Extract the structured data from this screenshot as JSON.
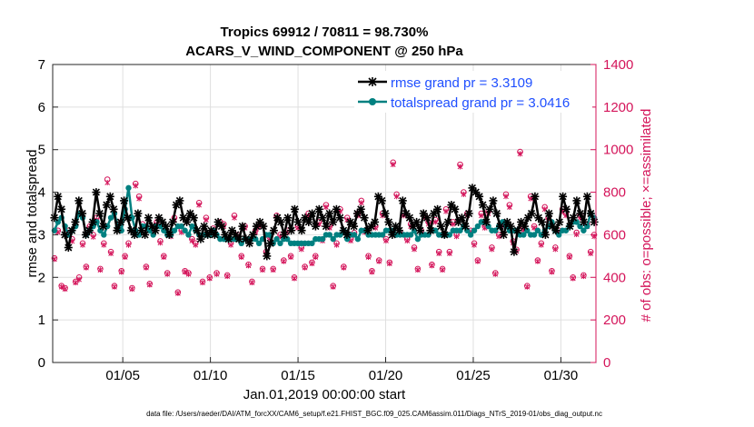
{
  "chart_data": {
    "type": "line",
    "title_line1": "Tropics 69912 / 70811 = 98.730%",
    "title_line2": "ACARS_V_WIND_COMPONENT @ 250 hPa",
    "xlabel": "Jan.01,2019 00:00:00 start",
    "ylabel_left": "rmse and totalspread",
    "ylabel_right": "# of obs: o=possible; ×=assimilated",
    "footnote": "data file: /Users/raeder/DAI/ATM_forcXX/CAM6_setup/f.e21.FHIST_BGC.f09_025.CAM6assim.011/Diags_NTrS_2019-01/obs_diag_output.nc",
    "xlim": [
      1,
      32
    ],
    "ylim_left": [
      0,
      7
    ],
    "ylim_right": [
      0,
      1400
    ],
    "x_ticks": [
      5,
      10,
      15,
      20,
      25,
      30
    ],
    "x_tick_labels": [
      "01/05",
      "01/10",
      "01/15",
      "01/20",
      "01/25",
      "01/30"
    ],
    "y_ticks_left": [
      "0",
      "1",
      "2",
      "3",
      "4",
      "5",
      "6",
      "7"
    ],
    "y_ticks_right": [
      "0",
      "200",
      "400",
      "600",
      "800",
      "1000",
      "1200",
      "1400"
    ],
    "grid": true,
    "legend_position": "top-right",
    "series": [
      {
        "name": "rmse grand pr = 3.3109",
        "color": "#000000",
        "marker": "asterisk",
        "axis": "left",
        "values": [
          3.4,
          3.9,
          3.6,
          3.0,
          2.7,
          3.1,
          3.3,
          3.8,
          3.5,
          3.0,
          3.1,
          3.3,
          4.0,
          3.5,
          3.2,
          3.7,
          3.9,
          3.6,
          3.1,
          3.3,
          3.8,
          3.4,
          3.1,
          3.0,
          3.5,
          3.1,
          3.0,
          3.4,
          3.2,
          3.1,
          3.4,
          3.3,
          3.2,
          3.0,
          3.3,
          3.7,
          3.8,
          3.4,
          3.3,
          3.5,
          3.4,
          3.1,
          2.9,
          3.2,
          3.0,
          3.1,
          3.0,
          3.3,
          3.2,
          3.0,
          2.9,
          3.1,
          3.0,
          2.9,
          3.2,
          2.9,
          2.8,
          3.0,
          3.2,
          3.3,
          3.2,
          2.5,
          2.8,
          3.1,
          3.4,
          3.3,
          3.0,
          3.4,
          3.1,
          3.6,
          3.3,
          3.1,
          3.4,
          3.3,
          3.5,
          3.2,
          3.6,
          3.4,
          3.2,
          3.5,
          3.3,
          3.6,
          3.4,
          3.1,
          3.0,
          3.3,
          3.2,
          3.5,
          3.6,
          3.4,
          3.1,
          3.2,
          3.3,
          3.9,
          3.8,
          3.5,
          3.3,
          3.0,
          3.2,
          3.1,
          3.8,
          3.5,
          3.4,
          3.2,
          3.3,
          3.1,
          3.5,
          3.4,
          3.1,
          3.5,
          3.6,
          3.2,
          3.0,
          3.3,
          3.7,
          3.6,
          3.3,
          3.4,
          3.2,
          3.5,
          4.1,
          4.0,
          3.9,
          3.7,
          3.3,
          3.6,
          3.8,
          3.5,
          3.2,
          3.0,
          3.3,
          3.2,
          2.6,
          3.1,
          3.3,
          3.2,
          3.4,
          3.5,
          3.9,
          3.4,
          3.3,
          3.0,
          3.5,
          3.2,
          3.1,
          3.3,
          3.9,
          3.6,
          3.2,
          3.4,
          3.8,
          3.5,
          3.3,
          3.9,
          3.5,
          3.3
        ]
      },
      {
        "name": "totalspread grand pr = 3.0416",
        "color": "#008080",
        "marker": "circle",
        "axis": "left",
        "values": [
          3.1,
          3.3,
          3.4,
          3.2,
          3.0,
          3.1,
          3.2,
          3.5,
          3.4,
          3.0,
          3.1,
          3.2,
          3.3,
          3.1,
          3.0,
          3.2,
          3.4,
          3.5,
          3.2,
          3.1,
          3.6,
          4.1,
          3.4,
          3.1,
          3.0,
          3.2,
          3.2,
          3.1,
          3.0,
          3.2,
          3.2,
          3.1,
          3.0,
          3.0,
          3.1,
          3.2,
          3.2,
          3.1,
          3.0,
          3.2,
          3.1,
          3.0,
          3.0,
          3.0,
          3.0,
          3.1,
          3.0,
          2.9,
          2.9,
          2.9,
          2.9,
          2.9,
          2.9,
          2.8,
          2.9,
          2.9,
          2.9,
          2.9,
          2.8,
          2.9,
          3.0,
          3.0,
          2.8,
          2.9,
          2.8,
          2.9,
          2.9,
          2.8,
          2.8,
          2.8,
          2.8,
          2.8,
          2.8,
          2.8,
          2.9,
          2.9,
          2.9,
          3.0,
          3.0,
          2.9,
          3.0,
          3.0,
          3.1,
          2.9,
          3.0,
          3.0,
          2.9,
          3.1,
          3.1,
          3.0,
          3.0,
          3.0,
          3.0,
          3.0,
          3.1,
          3.1,
          3.1,
          3.0,
          3.0,
          3.0,
          3.0,
          3.0,
          3.1,
          2.9,
          3.0,
          3.0,
          3.0,
          3.1,
          3.1,
          3.0,
          3.0,
          3.0,
          3.0,
          3.1,
          3.1,
          3.1,
          3.2,
          3.1,
          3.0,
          3.1,
          3.2,
          3.3,
          3.3,
          3.2,
          3.1,
          3.1,
          3.2,
          3.3,
          3.2,
          3.1,
          3.1,
          3.1,
          3.0,
          3.0,
          3.1,
          3.0,
          3.0,
          3.1,
          3.0,
          3.1,
          3.2,
          3.3,
          3.1,
          3.0,
          3.1,
          3.1,
          3.2,
          3.3,
          3.3,
          3.2,
          3.1,
          3.2,
          3.5,
          3.4
        ]
      },
      {
        "name": "# of obs possible",
        "color": "#d4145a",
        "marker": "open-circle",
        "axis": "right",
        "values": [
          490,
          620,
          360,
          350,
          620,
          580,
          380,
          400,
          560,
          450,
          640,
          600,
          680,
          440,
          560,
          860,
          520,
          360,
          660,
          430,
          500,
          560,
          350,
          840,
          780,
          650,
          450,
          370,
          620,
          660,
          570,
          500,
          420,
          600,
          680,
          330,
          620,
          430,
          420,
          580,
          560,
          750,
          380,
          680,
          400,
          630,
          420,
          660,
          650,
          410,
          560,
          690,
          600,
          500,
          640,
          460,
          380,
          620,
          650,
          440,
          520,
          590,
          440,
          690,
          600,
          480,
          620,
          500,
          400,
          640,
          540,
          450,
          700,
          470,
          500,
          660,
          580,
          740,
          640,
          360,
          560,
          720,
          450,
          680,
          580,
          610,
          700,
          760,
          620,
          500,
          430,
          640,
          480,
          700,
          580,
          470,
          940,
          790,
          610,
          700,
          580,
          650,
          540,
          440,
          620,
          690,
          660,
          460,
          670,
          520,
          440,
          720,
          520,
          660,
          600,
          930,
          800,
          700,
          620,
          560,
          480,
          700,
          640,
          710,
          540,
          420,
          600,
          650,
          790,
          740,
          570,
          530,
          990,
          630,
          360,
          780,
          640,
          480,
          560,
          730,
          680,
          430,
          540,
          620,
          720,
          700,
          500,
          400,
          610,
          690,
          410,
          650,
          520,
          600
        ]
      },
      {
        "name": "# of obs assimilated",
        "color": "#d4145a",
        "marker": "x",
        "axis": "right",
        "values": [
          485,
          612,
          355,
          345,
          610,
          570,
          375,
          390,
          552,
          445,
          632,
          590,
          670,
          435,
          552,
          845,
          512,
          355,
          650,
          425,
          495,
          552,
          345,
          830,
          770,
          640,
          445,
          365,
          612,
          650,
          562,
          495,
          415,
          592,
          670,
          325,
          612,
          425,
          415,
          572,
          552,
          740,
          375,
          670,
          395,
          622,
          415,
          650,
          640,
          405,
          552,
          680,
          592,
          495,
          632,
          455,
          375,
          612,
          640,
          435,
          512,
          582,
          435,
          680,
          592,
          475,
          612,
          495,
          395,
          632,
          532,
          445,
          690,
          465,
          495,
          650,
          572,
          730,
          632,
          355,
          552,
          710,
          445,
          670,
          572,
          602,
          690,
          750,
          612,
          495,
          425,
          632,
          475,
          690,
          572,
          465,
          930,
          780,
          602,
          690,
          572,
          640,
          532,
          435,
          612,
          680,
          650,
          455,
          660,
          512,
          435,
          710,
          512,
          650,
          592,
          920,
          790,
          690,
          612,
          552,
          475,
          690,
          632,
          700,
          532,
          415,
          592,
          640,
          780,
          730,
          562,
          522,
          980,
          622,
          355,
          770,
          632,
          475,
          552,
          720,
          670,
          425,
          532,
          612,
          710,
          690,
          495,
          395,
          602,
          680,
          405,
          640,
          512,
          592
        ]
      }
    ]
  }
}
